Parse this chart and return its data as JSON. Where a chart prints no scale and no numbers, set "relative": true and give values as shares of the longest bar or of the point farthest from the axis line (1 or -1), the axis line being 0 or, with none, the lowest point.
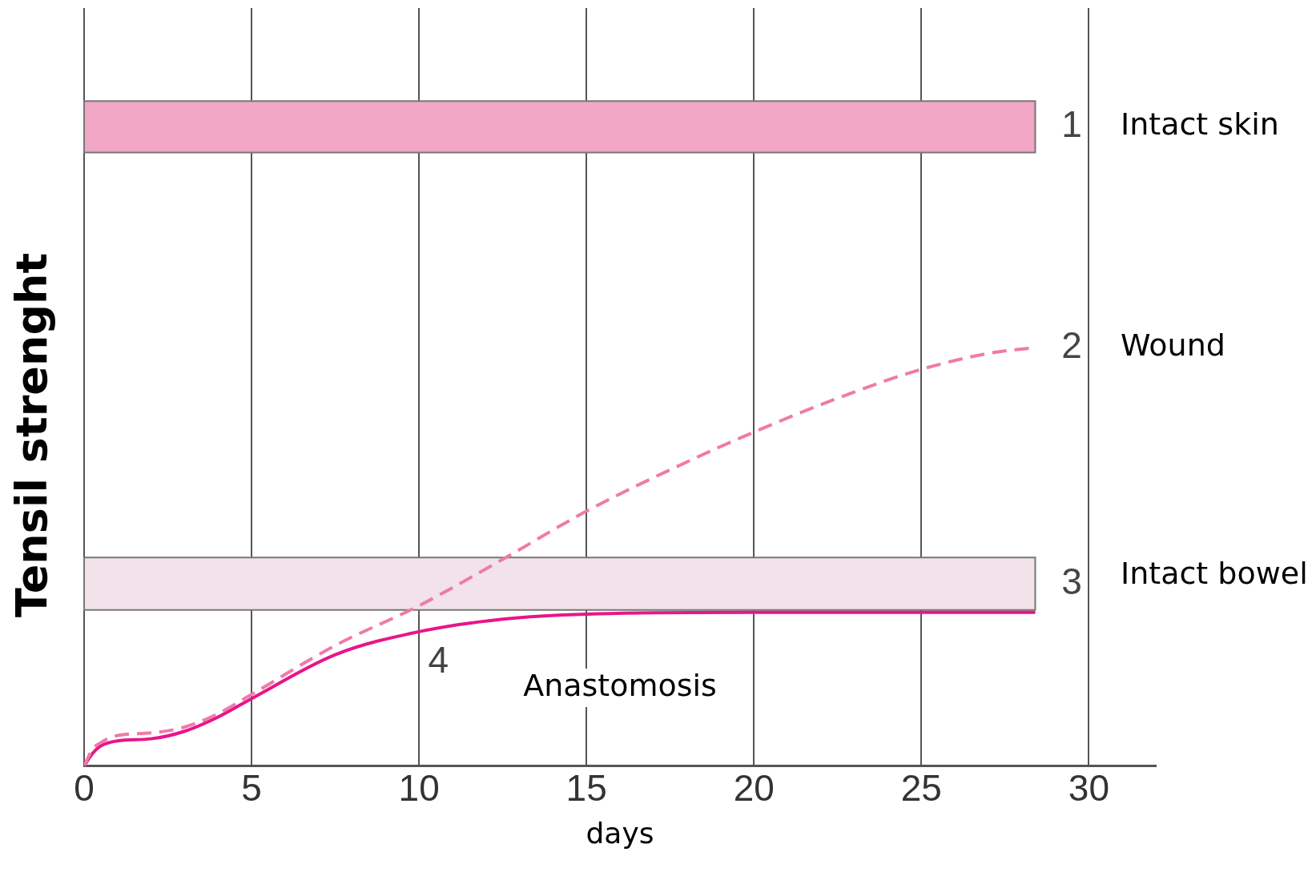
{
  "chart_data": {
    "type": "line",
    "relative": true,
    "ylabel": "Tensil strenght",
    "xlabel": "days",
    "xlim": [
      0,
      32
    ],
    "xticks": [
      0,
      5,
      10,
      15,
      20,
      25,
      30
    ],
    "grid": "x",
    "series": [
      {
        "name": "Wound",
        "color": "#f07aa8",
        "line_style": "dashed",
        "x": [
          0,
          0.25,
          0.5,
          1,
          2,
          3,
          4,
          5,
          7.5,
          10,
          12.5,
          15,
          17.5,
          20,
          22.5,
          25,
          27,
          28.4
        ],
        "values": [
          0,
          0.04,
          0.056,
          0.073,
          0.079,
          0.093,
          0.125,
          0.171,
          0.288,
          0.383,
          0.494,
          0.609,
          0.708,
          0.798,
          0.879,
          0.948,
          0.986,
          1
        ]
      },
      {
        "name": "Anastomosis",
        "color": "#e8158a",
        "line_style": "solid",
        "x": [
          0,
          0.25,
          0.5,
          1,
          2,
          3,
          4,
          5,
          7.5,
          10,
          12.5,
          15,
          20,
          28.4
        ],
        "values": [
          0,
          0.03,
          0.048,
          0.06,
          0.065,
          0.083,
          0.117,
          0.161,
          0.266,
          0.321,
          0.351,
          0.363,
          0.367,
          0.367
        ]
      }
    ],
    "bands": [
      {
        "axis": "y",
        "from": 1.466,
        "to": 1.589,
        "color": "#f0a6c4",
        "label": "Intact skin"
      },
      {
        "axis": "y",
        "from": 0.373,
        "to": 0.498,
        "color": "#f1e3e9",
        "label": "Intact bowel"
      }
    ],
    "annotations": [
      "1",
      "2",
      "3",
      "4"
    ]
  }
}
